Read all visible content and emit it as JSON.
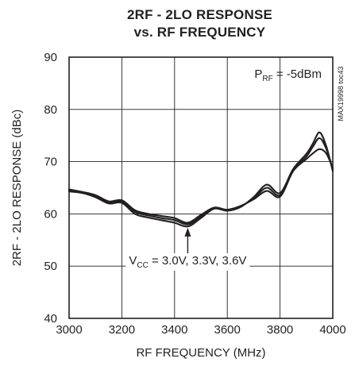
{
  "title_line1": "2RF - 2LO RESPONSE",
  "title_line2": "vs. RF FREQUENCY",
  "chart_data": {
    "type": "line",
    "title": "2RF - 2LO RESPONSE vs. RF FREQUENCY",
    "xlabel": "RF FREQUENCY (MHz)",
    "ylabel": "2RF - 2LO RESPONSE (dBc)",
    "xlim": [
      3000,
      4000
    ],
    "ylim": [
      40,
      90
    ],
    "xticks": [
      3000,
      3200,
      3400,
      3600,
      3800,
      4000
    ],
    "yticks": [
      40,
      50,
      60,
      70,
      80,
      90
    ],
    "grid": true,
    "condition_label": {
      "main": "P",
      "sub": "RF",
      "rest": " = -5dBm"
    },
    "annotation": {
      "main": "V",
      "sub": "CC",
      "rest": " = 3.0V, 3.3V, 3.6V",
      "x": 3450,
      "y": 57.5
    },
    "side_code": "MAX19998 toc43",
    "series": [
      {
        "x": [
          3000,
          3050,
          3100,
          3150,
          3200,
          3250,
          3300,
          3350,
          3400,
          3450,
          3500,
          3550,
          3600,
          3650,
          3700,
          3750,
          3800,
          3850,
          3900,
          3925,
          3950,
          3975,
          4000
        ],
        "values": [
          64.3,
          64.0,
          63.2,
          62.0,
          62.1,
          60.0,
          59.3,
          58.8,
          58.3,
          57.6,
          59.2,
          61.0,
          60.6,
          61.3,
          63.2,
          65.6,
          64.0,
          68.6,
          71.5,
          73.5,
          75.6,
          73.0,
          68.2
        ]
      },
      {
        "x": [
          3000,
          3050,
          3100,
          3150,
          3200,
          3250,
          3300,
          3350,
          3400,
          3450,
          3500,
          3550,
          3600,
          3650,
          3700,
          3750,
          3800,
          3850,
          3900,
          3925,
          3950,
          3975,
          4000
        ],
        "values": [
          64.5,
          64.1,
          63.4,
          62.2,
          62.4,
          60.4,
          59.7,
          59.2,
          58.8,
          58.0,
          59.5,
          61.1,
          60.7,
          61.4,
          63.0,
          65.0,
          63.6,
          68.4,
          71.0,
          72.9,
          74.5,
          72.5,
          68.5
        ]
      },
      {
        "x": [
          3000,
          3050,
          3100,
          3150,
          3200,
          3250,
          3300,
          3350,
          3400,
          3450,
          3500,
          3550,
          3600,
          3650,
          3700,
          3750,
          3800,
          3850,
          3900,
          3925,
          3950,
          3975,
          4000
        ],
        "values": [
          64.7,
          64.2,
          63.6,
          62.4,
          62.6,
          60.7,
          60.0,
          59.6,
          59.2,
          58.3,
          59.8,
          61.2,
          60.8,
          61.5,
          62.8,
          64.4,
          63.3,
          68.2,
          70.5,
          71.6,
          72.4,
          71.6,
          68.8
        ]
      }
    ]
  }
}
